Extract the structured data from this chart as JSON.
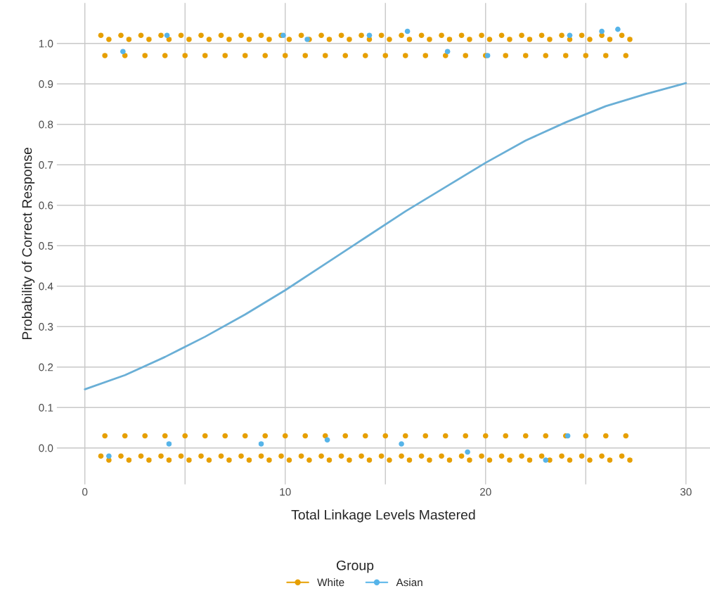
{
  "chart_data": {
    "type": "scatter",
    "xlabel": "Total Linkage Levels Mastered",
    "ylabel": "Probability of Correct Response",
    "legend_title": "Group",
    "legend": "bottom",
    "grid": true,
    "xlim": [
      -1.4,
      31.2
    ],
    "ylim": [
      -0.09,
      1.1
    ],
    "xticks": [
      0,
      {
        "value": 5,
        "label": null
      },
      10,
      {
        "value": 15,
        "label": null
      },
      20,
      {
        "value": 25,
        "label": null
      },
      30
    ],
    "yticks": [
      {
        "value": 0,
        "label": "0.0"
      },
      0.1,
      0.2,
      0.3,
      0.4,
      0.5,
      0.6,
      0.7,
      0.8,
      0.9,
      {
        "value": 1,
        "label": "1.0"
      }
    ],
    "series": [
      {
        "name": "White",
        "color": "#e69f00",
        "marker": "circle",
        "x": [
          0.8,
          1,
          1.2,
          1.8,
          2,
          2.2,
          2.8,
          3,
          3.2,
          3.8,
          4,
          4.2,
          4.8,
          5,
          5.2,
          5.8,
          6,
          6.2,
          6.8,
          7,
          7.2,
          7.8,
          8,
          8.2,
          8.8,
          9,
          9.2,
          9.8,
          10,
          10.2,
          10.8,
          11,
          11.2,
          11.8,
          12,
          12.2,
          12.8,
          13,
          13.2,
          13.8,
          14,
          14.2,
          14.8,
          15,
          15.2,
          15.8,
          16,
          16.2,
          16.8,
          17,
          17.2,
          17.8,
          18,
          18.2,
          18.8,
          19,
          19.2,
          19.8,
          20,
          20.2,
          20.8,
          21,
          21.2,
          21.8,
          22,
          22.2,
          22.8,
          23,
          23.2,
          23.8,
          24,
          24.2,
          24.8,
          25,
          25.2,
          25.8,
          26,
          26.2,
          26.8,
          27,
          27.2,
          0.8,
          1,
          1.2,
          1.8,
          2,
          2.2,
          2.8,
          3,
          3.2,
          3.8,
          4,
          4.2,
          4.8,
          5,
          5.2,
          5.8,
          6,
          6.2,
          6.8,
          7,
          7.2,
          7.8,
          8,
          8.2,
          8.8,
          9,
          9.2,
          9.8,
          10,
          10.2,
          10.8,
          11,
          11.2,
          11.8,
          12,
          12.2,
          12.8,
          13,
          13.2,
          13.8,
          14,
          14.2,
          14.8,
          15,
          15.2,
          15.8,
          16,
          16.2,
          16.8,
          17,
          17.2,
          17.8,
          18,
          18.2,
          18.8,
          19,
          19.2,
          19.8,
          20,
          20.2,
          20.8,
          21,
          21.2,
          21.8,
          22,
          22.2,
          22.8,
          23,
          23.2,
          23.8,
          24,
          24.2,
          24.8,
          25,
          25.2,
          25.8,
          26,
          26.2,
          26.8,
          27,
          27.2
        ],
        "values": [
          1.02,
          0.97,
          1.01,
          1.02,
          0.97,
          1.01,
          1.02,
          0.97,
          1.01,
          1.02,
          0.97,
          1.01,
          1.02,
          0.97,
          1.01,
          1.02,
          0.97,
          1.01,
          1.02,
          0.97,
          1.01,
          1.02,
          0.97,
          1.01,
          1.02,
          0.97,
          1.01,
          1.02,
          0.97,
          1.01,
          1.02,
          0.97,
          1.01,
          1.02,
          0.97,
          1.01,
          1.02,
          0.97,
          1.01,
          1.02,
          0.97,
          1.01,
          1.02,
          0.97,
          1.01,
          1.02,
          0.97,
          1.01,
          1.02,
          0.97,
          1.01,
          1.02,
          0.97,
          1.01,
          1.02,
          0.97,
          1.01,
          1.02,
          0.97,
          1.01,
          1.02,
          0.97,
          1.01,
          1.02,
          0.97,
          1.01,
          1.02,
          0.97,
          1.01,
          1.02,
          0.97,
          1.01,
          1.02,
          0.97,
          1.01,
          1.02,
          0.97,
          1.01,
          1.02,
          0.97,
          1.01,
          -0.02,
          0.03,
          -0.03,
          -0.02,
          0.03,
          -0.03,
          -0.02,
          0.03,
          -0.03,
          -0.02,
          0.03,
          -0.03,
          -0.02,
          0.03,
          -0.03,
          -0.02,
          0.03,
          -0.03,
          -0.02,
          0.03,
          -0.03,
          -0.02,
          0.03,
          -0.03,
          -0.02,
          0.03,
          -0.03,
          -0.02,
          0.03,
          -0.03,
          -0.02,
          0.03,
          -0.03,
          -0.02,
          0.03,
          -0.03,
          -0.02,
          0.03,
          -0.03,
          -0.02,
          0.03,
          -0.03,
          -0.02,
          0.03,
          -0.03,
          -0.02,
          0.03,
          -0.03,
          -0.02,
          0.03,
          -0.03,
          -0.02,
          0.03,
          -0.03,
          -0.02,
          0.03,
          -0.03,
          -0.02,
          0.03,
          -0.03,
          -0.02,
          0.03,
          -0.03,
          -0.02,
          0.03,
          -0.03,
          -0.02,
          0.03,
          -0.03,
          -0.02,
          0.03,
          -0.03,
          -0.02,
          0.03,
          -0.03,
          -0.02,
          0.03,
          -0.03,
          -0.02,
          0.03,
          -0.03
        ]
      },
      {
        "name": "Asian",
        "color": "#56b4e9",
        "marker": "circle",
        "x": [
          1.9,
          4.1,
          9.9,
          11.1,
          14.2,
          16.1,
          18.1,
          20.1,
          24.2,
          25.8,
          26.6,
          1.2,
          4.2,
          8.8,
          12.1,
          15.8,
          19.1,
          24.1,
          23.0
        ],
        "values": [
          0.98,
          1.02,
          1.02,
          1.01,
          1.02,
          1.03,
          0.98,
          0.97,
          1.02,
          1.03,
          1.035,
          -0.02,
          0.01,
          0.01,
          0.02,
          0.01,
          -0.01,
          0.03,
          -0.03
        ]
      },
      {
        "type": "line",
        "color": "#6aafd6",
        "marker": "none",
        "x": [
          0,
          2,
          4,
          6,
          8,
          10,
          12,
          14,
          16,
          18,
          20,
          22,
          24,
          26,
          28,
          30
        ],
        "values": [
          0.145,
          0.18,
          0.225,
          0.275,
          0.33,
          0.39,
          0.455,
          0.52,
          0.585,
          0.645,
          0.705,
          0.76,
          0.805,
          0.845,
          0.875,
          0.902
        ]
      }
    ]
  }
}
